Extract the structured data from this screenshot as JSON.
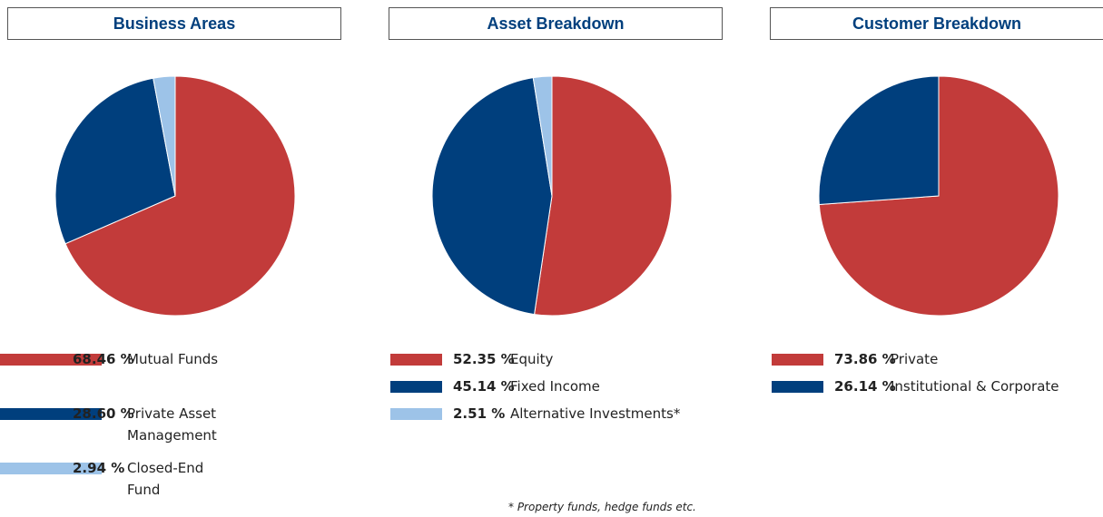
{
  "chart_data": [
    {
      "type": "pie",
      "title": "Business Areas",
      "categories": [
        "Mutual Funds",
        "Private Asset Management",
        "Closed-End Fund"
      ],
      "values": [
        68.46,
        28.6,
        2.94
      ],
      "value_labels": [
        "68.46 %",
        "28.60 %",
        "2.94 %"
      ],
      "colors": [
        "#c23b3a",
        "#003f7d",
        "#9dc3e8"
      ]
    },
    {
      "type": "pie",
      "title": "Asset Breakdown",
      "categories": [
        "Equity",
        "Fixed Income",
        "Alternative Investments*"
      ],
      "values": [
        52.35,
        45.14,
        2.51
      ],
      "value_labels": [
        "52.35 %",
        "45.14 %",
        "2.51 %"
      ],
      "colors": [
        "#c23b3a",
        "#003f7d",
        "#9dc3e8"
      ]
    },
    {
      "type": "pie",
      "title": "Customer Breakdown",
      "categories": [
        "Private",
        "Institutional & Corporate"
      ],
      "values": [
        73.86,
        26.14
      ],
      "value_labels": [
        "73.86 %",
        "26.14 %"
      ],
      "colors": [
        "#c23b3a",
        "#003f7d"
      ]
    }
  ],
  "footnote": "* Property funds, hedge funds etc."
}
